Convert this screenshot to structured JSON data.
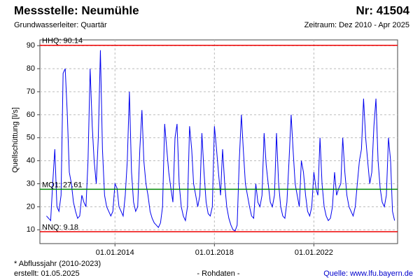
{
  "chart_data": {
    "type": "line",
    "title": "Messstelle: Neumühle",
    "station_number": "Nr: 41504",
    "subtitle": "Grundwasserleiter: Quartär",
    "period": "Zeitraum: Dez 2010 - Apr 2025",
    "y_label": "Quellschüttung [l/s]",
    "footnote": "* Abflussjahr (2010-2023)",
    "created": "erstellt:  01.05.2025",
    "data_note": "- Rohdaten -",
    "source": "Quelle:  www.lfu.bayern.de",
    "color": "#0000ee",
    "grid": true,
    "ylim": [
      4,
      92.5
    ],
    "yticks": [
      10,
      20,
      30,
      40,
      50,
      60,
      70,
      80,
      90
    ],
    "xlim": [
      "2010-12-25",
      "2025-05-15"
    ],
    "xticks": [
      {
        "value": "2014-01-01",
        "label": "01.01.2014"
      },
      {
        "value": "2018-01-01",
        "label": "01.01.2018"
      },
      {
        "value": "2022-01-01",
        "label": "01.01.2022"
      }
    ],
    "reference_lines": [
      {
        "label": "HHQ: 90.14",
        "value": 90.14,
        "color": "#ee0000"
      },
      {
        "label": "MQ1: 27.61",
        "value": 27.61,
        "color": "#008800"
      },
      {
        "label": "NNQ: 9.18",
        "value": 9.18,
        "color": "#ee0000"
      }
    ],
    "x": [
      "2011-04-01",
      "2011-05-01",
      "2011-06-01",
      "2011-07-01",
      "2011-08-01",
      "2011-09-01",
      "2011-10-01",
      "2011-11-01",
      "2011-12-01",
      "2012-01-01",
      "2012-02-01",
      "2012-03-01",
      "2012-04-01",
      "2012-05-01",
      "2012-06-01",
      "2012-07-01",
      "2012-08-01",
      "2012-09-01",
      "2012-10-01",
      "2012-11-01",
      "2012-12-01",
      "2013-01-01",
      "2013-02-01",
      "2013-03-01",
      "2013-04-01",
      "2013-05-01",
      "2013-06-01",
      "2013-07-01",
      "2013-08-01",
      "2013-09-01",
      "2013-10-01",
      "2013-11-01",
      "2013-12-01",
      "2014-01-01",
      "2014-02-01",
      "2014-03-01",
      "2014-04-01",
      "2014-05-01",
      "2014-06-01",
      "2014-07-01",
      "2014-08-01",
      "2014-09-01",
      "2014-10-01",
      "2014-11-01",
      "2014-12-01",
      "2015-01-01",
      "2015-02-01",
      "2015-03-01",
      "2015-04-01",
      "2015-05-01",
      "2015-06-01",
      "2015-07-01",
      "2015-08-01",
      "2015-09-01",
      "2015-10-01",
      "2015-11-01",
      "2015-12-01",
      "2016-01-01",
      "2016-02-01",
      "2016-03-01",
      "2016-04-01",
      "2016-05-01",
      "2016-06-01",
      "2016-07-01",
      "2016-08-01",
      "2016-09-01",
      "2016-10-01",
      "2016-11-01",
      "2016-12-01",
      "2017-01-01",
      "2017-02-01",
      "2017-03-01",
      "2017-04-01",
      "2017-05-01",
      "2017-06-01",
      "2017-07-01",
      "2017-08-01",
      "2017-09-01",
      "2017-10-01",
      "2017-11-01",
      "2017-12-01",
      "2018-01-01",
      "2018-02-01",
      "2018-03-01",
      "2018-04-01",
      "2018-05-01",
      "2018-06-01",
      "2018-07-01",
      "2018-08-01",
      "2018-09-01",
      "2018-10-01",
      "2018-11-01",
      "2018-12-01",
      "2019-01-01",
      "2019-02-01",
      "2019-03-01",
      "2019-04-01",
      "2019-05-01",
      "2019-06-01",
      "2019-07-01",
      "2019-08-01",
      "2019-09-01",
      "2019-10-01",
      "2019-11-01",
      "2019-12-01",
      "2020-01-01",
      "2020-02-01",
      "2020-03-01",
      "2020-04-01",
      "2020-05-01",
      "2020-06-01",
      "2020-07-01",
      "2020-08-01",
      "2020-09-01",
      "2020-10-01",
      "2020-11-01",
      "2020-12-01",
      "2021-01-01",
      "2021-02-01",
      "2021-03-01",
      "2021-04-01",
      "2021-05-01",
      "2021-06-01",
      "2021-07-01",
      "2021-08-01",
      "2021-09-01",
      "2021-10-01",
      "2021-11-01",
      "2021-12-01",
      "2022-01-01",
      "2022-02-01",
      "2022-03-01",
      "2022-04-01",
      "2022-05-01",
      "2022-06-01",
      "2022-07-01",
      "2022-08-01",
      "2022-09-01",
      "2022-10-01",
      "2022-11-01",
      "2022-12-01",
      "2023-01-01",
      "2023-02-01",
      "2023-03-01",
      "2023-04-01",
      "2023-05-01",
      "2023-06-01",
      "2023-07-01",
      "2023-08-01",
      "2023-09-01",
      "2023-10-01",
      "2023-11-01",
      "2023-12-01",
      "2024-01-01",
      "2024-02-01",
      "2024-03-01",
      "2024-04-01",
      "2024-05-01",
      "2024-06-01",
      "2024-07-01",
      "2024-08-01",
      "2024-09-01",
      "2024-10-01",
      "2024-11-01",
      "2024-12-01",
      "2025-01-01",
      "2025-02-01",
      "2025-03-01",
      "2025-04-01"
    ],
    "values": [
      16,
      15,
      14,
      30,
      45,
      20,
      18,
      25,
      78,
      80,
      60,
      35,
      30,
      22,
      18,
      15,
      16,
      25,
      22,
      20,
      40,
      80,
      55,
      40,
      30,
      50,
      88,
      45,
      25,
      20,
      18,
      16,
      18,
      30,
      28,
      20,
      18,
      16,
      25,
      40,
      70,
      35,
      22,
      18,
      20,
      45,
      62,
      40,
      30,
      25,
      18,
      15,
      13,
      12,
      11,
      13,
      20,
      56,
      45,
      35,
      28,
      22,
      50,
      56,
      30,
      20,
      16,
      14,
      20,
      55,
      45,
      30,
      25,
      20,
      25,
      52,
      35,
      22,
      17,
      16,
      20,
      55,
      45,
      35,
      25,
      45,
      30,
      20,
      15,
      12,
      10,
      9.5,
      12,
      40,
      60,
      45,
      30,
      25,
      20,
      16,
      15,
      30,
      22,
      20,
      25,
      52,
      38,
      30,
      22,
      20,
      25,
      52,
      30,
      20,
      16,
      15,
      22,
      40,
      60,
      45,
      30,
      25,
      20,
      40,
      35,
      25,
      18,
      16,
      20,
      35,
      28,
      25,
      50,
      30,
      20,
      16,
      14,
      15,
      20,
      35,
      25,
      28,
      30,
      50,
      35,
      25,
      20,
      18,
      16,
      20,
      30,
      40,
      45,
      67,
      50,
      40,
      30,
      35,
      55,
      67,
      40,
      28,
      22,
      20,
      25,
      50,
      40,
      18,
      14
    ]
  }
}
